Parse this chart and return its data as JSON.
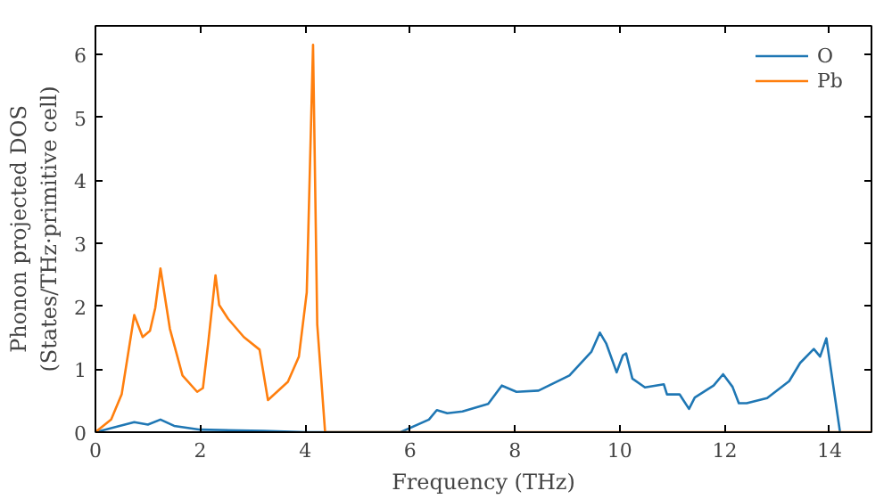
{
  "chart_data": {
    "type": "line",
    "xlabel": "Frequency (THz)",
    "ylabel": "Phonon projected DOS\n(States/THz·primitive cell)",
    "xlim": [
      0,
      14.8
    ],
    "ylim": [
      0,
      6.45
    ],
    "xticks": [
      0,
      2,
      4,
      6,
      8,
      10,
      12,
      14
    ],
    "yticks": [
      0,
      1,
      2,
      3,
      4,
      5,
      6
    ],
    "legend": "top right",
    "grid": false,
    "series": [
      {
        "name": "O",
        "color": "#1f77b4",
        "x": [
          0,
          0.74,
          1.0,
          1.24,
          1.5,
          2.0,
          3.2,
          4.0,
          5.82,
          6.36,
          6.51,
          6.71,
          7.0,
          7.49,
          7.75,
          8.03,
          8.45,
          9.04,
          9.46,
          9.62,
          9.74,
          9.94,
          10.06,
          10.12,
          10.24,
          10.48,
          10.84,
          10.9,
          11.14,
          11.32,
          11.43,
          11.79,
          11.97,
          12.15,
          12.27,
          12.42,
          12.81,
          13.23,
          13.44,
          13.7,
          13.82,
          13.94,
          14.2
        ],
        "values": [
          0,
          0.16,
          0.12,
          0.2,
          0.1,
          0.04,
          0.02,
          0,
          0,
          0.2,
          0.35,
          0.3,
          0.33,
          0.45,
          0.74,
          0.64,
          0.66,
          0.9,
          1.28,
          1.58,
          1.41,
          0.95,
          1.22,
          1.25,
          0.85,
          0.71,
          0.76,
          0.6,
          0.6,
          0.37,
          0.55,
          0.74,
          0.92,
          0.72,
          0.46,
          0.46,
          0.54,
          0.81,
          1.1,
          1.32,
          1.2,
          1.49,
          0
        ]
      },
      {
        "name": "Pb",
        "color": "#ff7f0e",
        "x": [
          0,
          0.3,
          0.5,
          0.74,
          0.9,
          1.04,
          1.14,
          1.24,
          1.42,
          1.66,
          1.94,
          2.05,
          2.15,
          2.29,
          2.36,
          2.53,
          2.83,
          3.13,
          3.29,
          3.67,
          3.88,
          4.03,
          4.15,
          4.23,
          4.38,
          14.8
        ],
        "values": [
          0,
          0.2,
          0.6,
          1.86,
          1.51,
          1.61,
          1.97,
          2.6,
          1.64,
          0.9,
          0.64,
          0.7,
          1.41,
          2.49,
          2.02,
          1.8,
          1.51,
          1.31,
          0.51,
          0.8,
          1.2,
          2.22,
          6.15,
          1.71,
          0,
          0
        ]
      }
    ]
  }
}
